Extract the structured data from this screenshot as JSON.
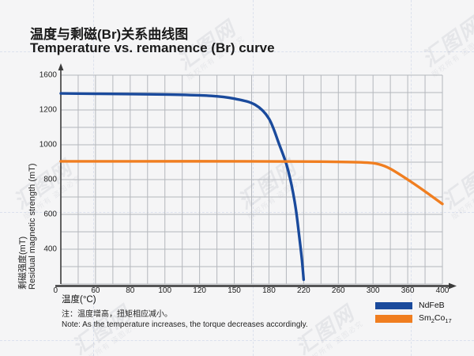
{
  "page": {
    "background": "#f5f5f6"
  },
  "title": {
    "zh": "温度与剩磁(Br)关系曲线图",
    "en": "Temperature vs. remanence (Br) curve"
  },
  "watermark": {
    "logo": "汇图网",
    "tagline": "版权所有 盗图必究"
  },
  "note": {
    "zh": "注：温度增高，扭矩相应减小。",
    "en": "Note: As the temperature increases, the torque decreases accordingly."
  },
  "legend": {
    "items": [
      {
        "name": "NdFeB",
        "color": "#1a4a9c",
        "parts": {
          "base1": "NdFeB"
        }
      },
      {
        "name": "Sm2Co17",
        "color": "#f07e20",
        "parts": {
          "base1": "Sm",
          "sub1": "2",
          "base2": "Co",
          "sub2": "17"
        }
      }
    ]
  },
  "chart_data": {
    "type": "line",
    "title_zh": "温度与剩磁(Br)关系曲线图",
    "title": "Temperature vs. remanence (Br) curve",
    "xlabel": "温度(°C)",
    "ylabel_zh": "剩磁强度(mT)",
    "ylabel_en": "Residual magnetic strength (mT)",
    "x_tick_labels": [
      0,
      60,
      80,
      100,
      120,
      150,
      180,
      220,
      260,
      300,
      360,
      400
    ],
    "y_tick_labels": [
      1600,
      1200,
      1000,
      800,
      600,
      400
    ],
    "ylim": [
      0,
      1600
    ],
    "grid": true,
    "legend_position": "bottom-right",
    "axis_note": "x tick labels are evenly spaced on the axis; y labels every second gridline",
    "series": [
      {
        "name": "NdFeB",
        "color": "#1a4a9c",
        "points": [
          [
            0,
            1390
          ],
          [
            60,
            1386
          ],
          [
            100,
            1378
          ],
          [
            130,
            1362
          ],
          [
            150,
            1330
          ],
          [
            168,
            1260
          ],
          [
            180,
            1150
          ],
          [
            192,
            1000
          ],
          [
            200,
            890
          ],
          [
            206,
            770
          ],
          [
            211,
            630
          ],
          [
            215,
            470
          ],
          [
            218,
            280
          ],
          [
            220,
            50
          ]
        ]
      },
      {
        "name": "Sm2Co17",
        "color": "#f07e20",
        "points": [
          [
            0,
            905
          ],
          [
            80,
            905
          ],
          [
            160,
            905
          ],
          [
            240,
            903
          ],
          [
            290,
            898
          ],
          [
            310,
            888
          ],
          [
            330,
            862
          ],
          [
            360,
            800
          ],
          [
            380,
            732
          ],
          [
            400,
            660
          ]
        ]
      }
    ]
  }
}
